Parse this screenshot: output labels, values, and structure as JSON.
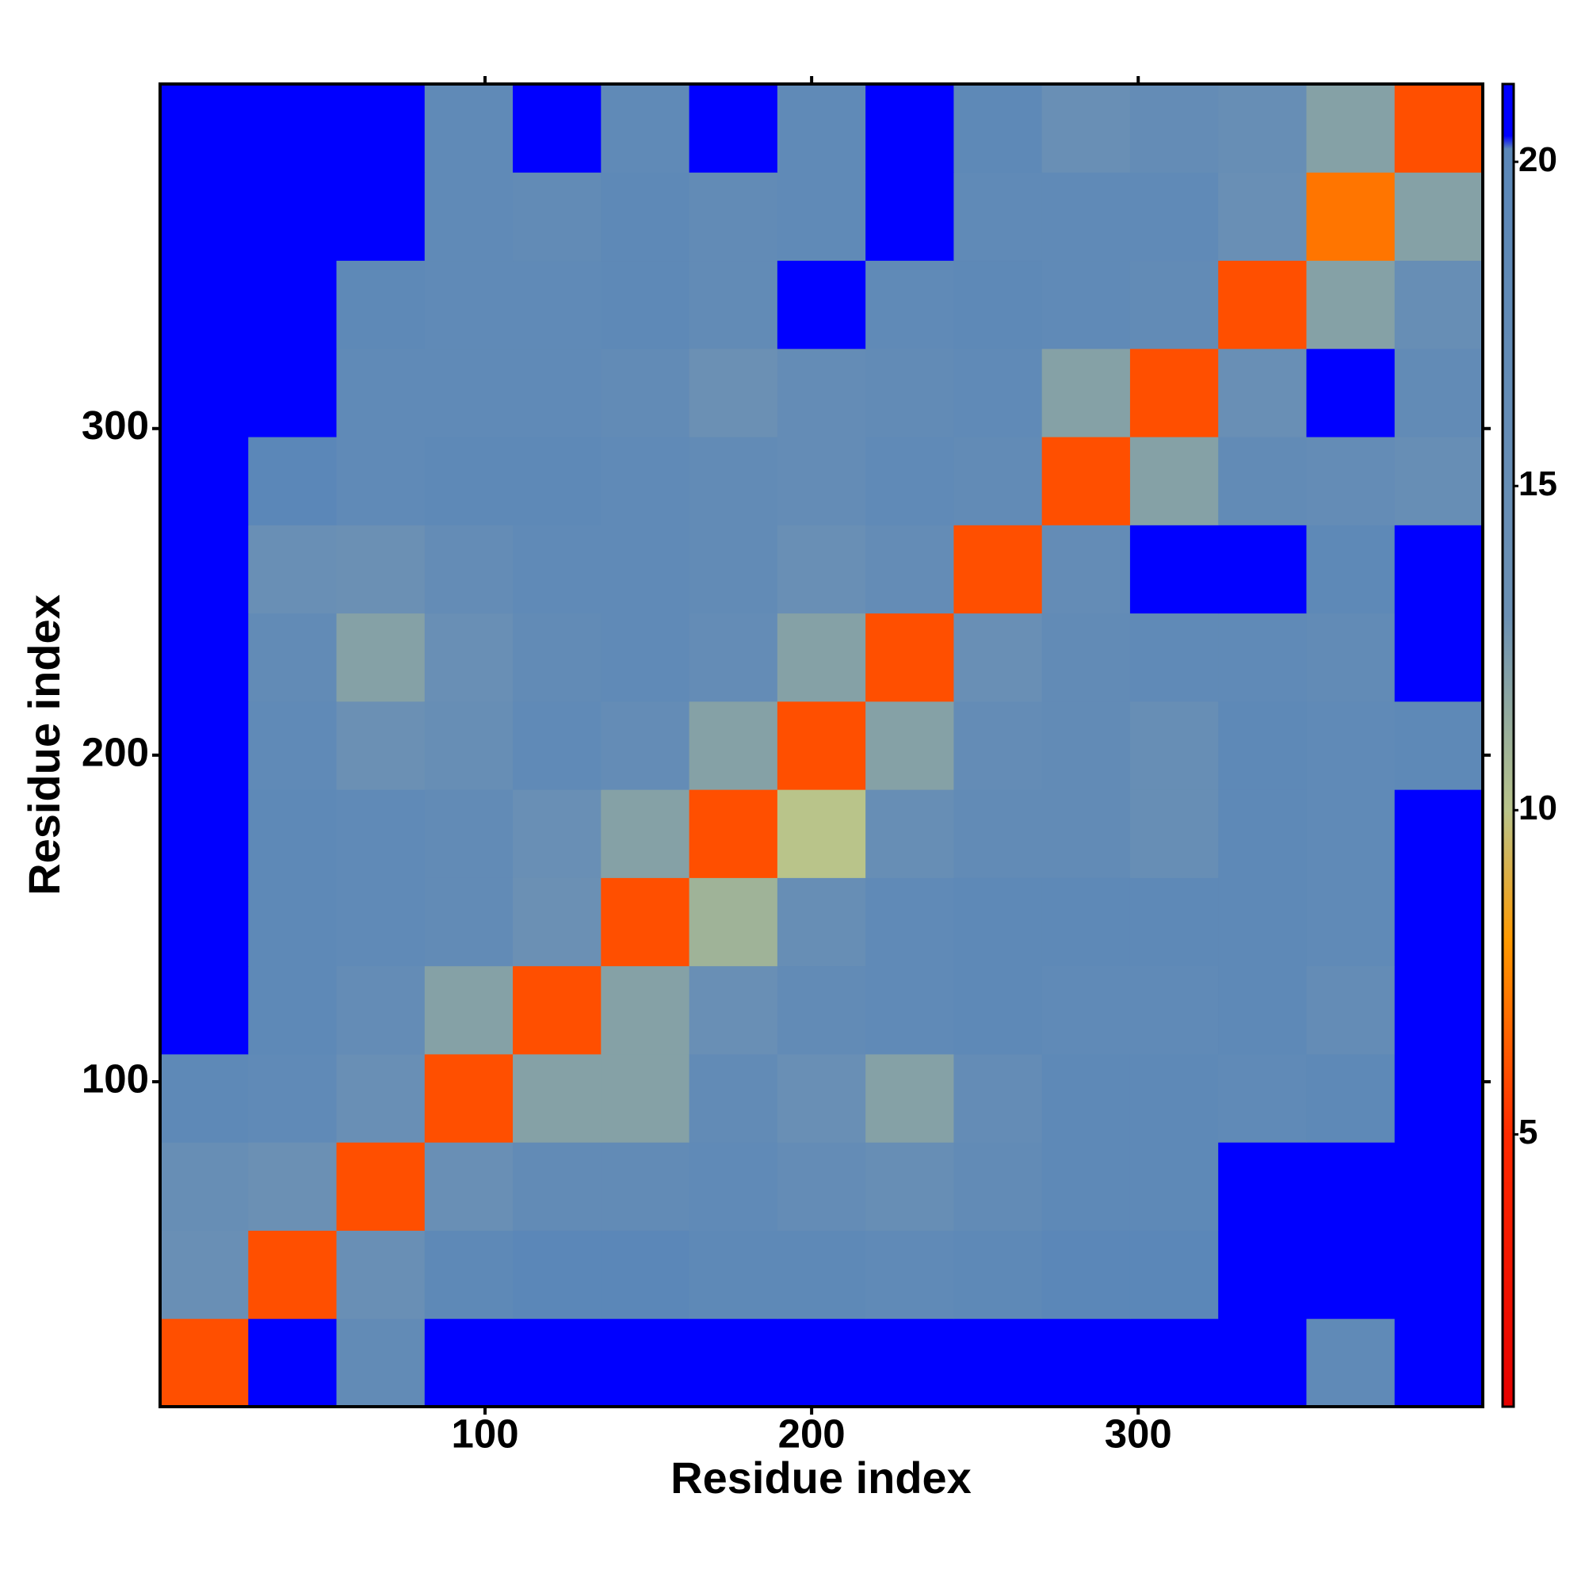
{
  "chart_data": {
    "type": "heatmap",
    "xlabel": "Residue index",
    "ylabel": "Residue index",
    "xbins": [
      0.5,
      27.5,
      54.5,
      81.5,
      108.5,
      135.5,
      162.5,
      189.5,
      216.5,
      243.5,
      270.5,
      297.5,
      324.5,
      351.5,
      378.5,
      405.5
    ],
    "ybins": [
      0.5,
      27.5,
      54.5,
      81.5,
      108.5,
      135.5,
      162.5,
      189.5,
      216.5,
      243.5,
      270.5,
      297.5,
      324.5,
      351.5,
      378.5,
      405.5
    ],
    "z": [
      [
        6,
        21,
        17,
        21,
        21,
        21,
        21,
        21,
        21,
        21,
        21,
        21,
        21,
        18,
        21
      ],
      [
        14,
        6,
        14,
        19,
        20,
        20,
        19,
        19,
        18,
        19,
        20,
        20,
        21,
        21,
        21
      ],
      [
        15,
        13,
        6,
        14,
        17,
        17,
        18,
        16,
        15,
        17,
        19,
        19,
        21,
        21,
        21
      ],
      [
        19,
        18,
        14,
        6,
        12,
        12,
        17,
        14,
        12,
        16,
        19,
        19,
        18,
        19,
        21
      ],
      [
        21,
        19,
        16,
        12,
        6,
        12,
        14,
        17,
        18,
        19,
        18,
        18,
        19,
        16,
        21
      ],
      [
        21,
        19,
        18,
        17,
        13,
        6,
        11,
        15,
        18,
        19,
        19,
        19,
        19,
        18,
        21
      ],
      [
        21,
        19,
        18,
        17,
        14,
        12,
        6,
        10,
        15,
        17,
        17,
        15,
        19,
        18,
        21
      ],
      [
        21,
        18,
        13,
        15,
        18,
        16,
        12,
        6,
        12,
        16,
        17,
        15,
        19,
        18,
        19
      ],
      [
        21,
        17,
        12,
        14,
        17,
        18,
        16,
        12,
        6,
        14,
        17,
        18,
        18,
        17,
        21
      ],
      [
        21,
        14,
        13,
        16,
        18,
        18,
        17,
        14,
        16,
        6,
        16,
        21,
        21,
        19,
        21
      ],
      [
        21,
        20,
        18,
        19,
        19,
        18,
        17,
        16,
        18,
        17,
        6,
        12,
        17,
        16,
        15
      ],
      [
        21,
        21,
        18,
        18,
        18,
        17,
        13,
        16,
        17,
        18,
        12,
        6,
        14,
        21,
        17
      ],
      [
        21,
        21,
        19,
        18,
        18,
        19,
        17,
        21,
        18,
        19,
        18,
        17,
        6,
        12,
        15
      ],
      [
        21,
        21,
        21,
        18,
        17,
        19,
        17,
        18,
        21,
        18,
        18,
        18,
        14,
        7,
        12
      ],
      [
        21,
        21,
        21,
        18,
        21,
        18,
        21,
        18,
        21,
        19,
        14,
        16,
        15,
        12,
        6
      ]
    ],
    "xlim": [
      0.5,
      405.5
    ],
    "ylim": [
      0.5,
      405.5
    ],
    "xticks": [
      100,
      200,
      300
    ],
    "yticks": [
      100,
      200,
      300
    ],
    "clim": [
      0.8,
      21.2
    ],
    "cticks": [
      5,
      10,
      15,
      20
    ],
    "colorscale": [
      [
        0.8,
        "#e60000"
      ],
      [
        5,
        "#ff2a00"
      ],
      [
        8,
        "#ff9a00"
      ],
      [
        10,
        "#b9c48a"
      ],
      [
        13,
        "#6b90b4"
      ],
      [
        20.2,
        "#5b87b8"
      ],
      [
        20.4,
        "#0000ff"
      ],
      [
        21.2,
        "#0000ff"
      ]
    ]
  }
}
